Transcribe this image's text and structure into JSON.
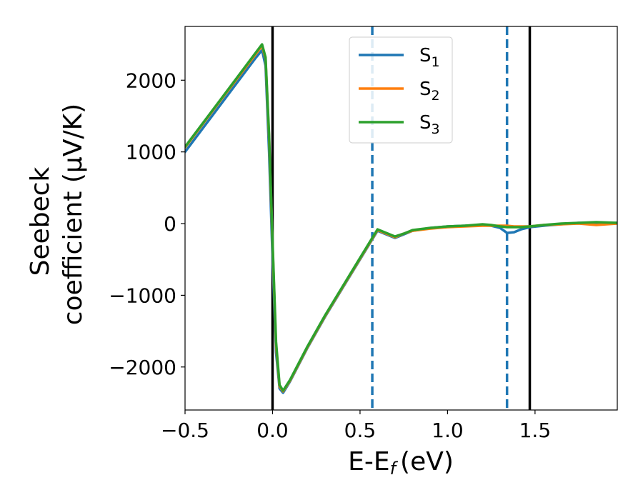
{
  "chart_data": {
    "type": "line",
    "xlabel": "E-E",
    "xlabel_sub": "f",
    "xlabel_unit": "(eV)",
    "ylabel_line1": "Seebeck",
    "ylabel_line2": "coefficient  (μV/K)",
    "xlim": [
      -0.5,
      1.97
    ],
    "ylim": [
      -2600,
      2750
    ],
    "x_ticks": [
      -0.5,
      0.0,
      0.5,
      1.0,
      1.5
    ],
    "x_tick_labels": [
      "−0.5",
      "0.0",
      "0.5",
      "1.0",
      "1.5"
    ],
    "y_ticks": [
      -2000,
      -1000,
      0,
      1000,
      2000
    ],
    "y_tick_labels": [
      "−2000",
      "−1000",
      "0",
      "1000",
      "2000"
    ],
    "legend_placement": "upper-center",
    "vlines": [
      {
        "x": 0.0,
        "style": "solid",
        "color": "#000000"
      },
      {
        "x": 1.47,
        "style": "solid",
        "color": "#000000"
      },
      {
        "x": 0.57,
        "style": "dashed",
        "color": "#1f77b4"
      },
      {
        "x": 1.34,
        "style": "dashed",
        "color": "#1f77b4"
      }
    ],
    "series": [
      {
        "name": "S",
        "name_sub": "1",
        "color": "#1f77b4",
        "x": [
          -0.5,
          -0.3,
          -0.1,
          -0.06,
          -0.04,
          -0.02,
          0.0,
          0.02,
          0.04,
          0.06,
          0.1,
          0.2,
          0.3,
          0.4,
          0.5,
          0.6,
          0.7,
          0.75,
          0.8,
          0.9,
          1.0,
          1.1,
          1.2,
          1.25,
          1.3,
          1.34,
          1.38,
          1.42,
          1.47,
          1.55,
          1.65,
          1.75,
          1.85,
          1.97
        ],
        "y": [
          1000,
          1650,
          2300,
          2420,
          2200,
          1000,
          -500,
          -1800,
          -2300,
          -2360,
          -2200,
          -1730,
          -1300,
          -900,
          -500,
          -100,
          -200,
          -150,
          -100,
          -60,
          -40,
          -30,
          -20,
          -30,
          -60,
          -130,
          -120,
          -80,
          -50,
          -30,
          -10,
          10,
          0,
          10
        ]
      },
      {
        "name": "S",
        "name_sub": "2",
        "color": "#ff7f0e",
        "x": [
          -0.5,
          -0.3,
          -0.1,
          -0.06,
          -0.04,
          -0.02,
          0.0,
          0.02,
          0.04,
          0.06,
          0.1,
          0.2,
          0.3,
          0.4,
          0.5,
          0.6,
          0.7,
          0.75,
          0.8,
          0.9,
          1.0,
          1.1,
          1.2,
          1.25,
          1.3,
          1.34,
          1.38,
          1.42,
          1.47,
          1.55,
          1.65,
          1.75,
          1.85,
          1.97
        ],
        "y": [
          1060,
          1710,
          2350,
          2480,
          2300,
          1200,
          -300,
          -1700,
          -2270,
          -2340,
          -2190,
          -1720,
          -1290,
          -890,
          -490,
          -90,
          -190,
          -140,
          -100,
          -70,
          -50,
          -40,
          -30,
          -30,
          -30,
          -30,
          -40,
          -40,
          -40,
          -20,
          -10,
          0,
          -20,
          0
        ]
      },
      {
        "name": "S",
        "name_sub": "3",
        "color": "#2ca02c",
        "x": [
          -0.5,
          -0.3,
          -0.1,
          -0.06,
          -0.04,
          -0.02,
          0.0,
          0.02,
          0.04,
          0.06,
          0.1,
          0.2,
          0.3,
          0.4,
          0.5,
          0.6,
          0.7,
          0.75,
          0.8,
          0.9,
          1.0,
          1.1,
          1.2,
          1.25,
          1.3,
          1.34,
          1.38,
          1.42,
          1.47,
          1.55,
          1.65,
          1.75,
          1.85,
          1.97
        ],
        "y": [
          1070,
          1720,
          2370,
          2500,
          2320,
          1250,
          -250,
          -1650,
          -2250,
          -2330,
          -2180,
          -1710,
          -1280,
          -880,
          -480,
          -80,
          -180,
          -140,
          -90,
          -60,
          -40,
          -30,
          -10,
          -20,
          -40,
          -50,
          -50,
          -50,
          -40,
          -20,
          0,
          10,
          20,
          10
        ]
      }
    ]
  }
}
